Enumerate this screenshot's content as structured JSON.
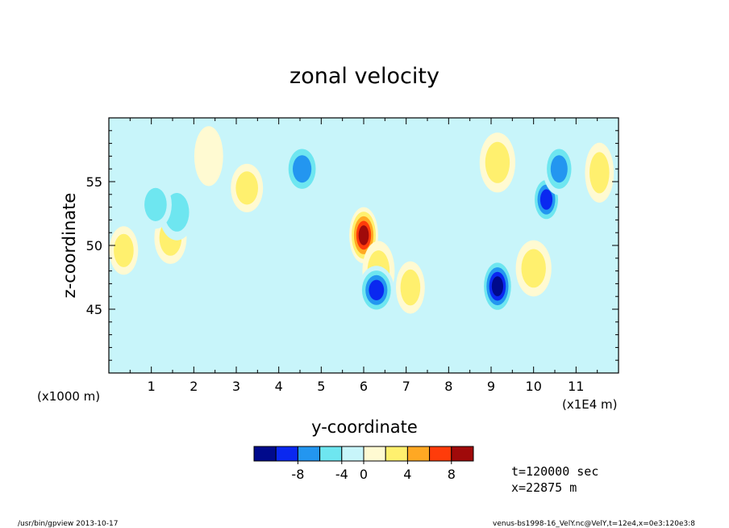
{
  "chart_data": {
    "type": "heatmap",
    "title": "zonal velocity",
    "xlabel": "y-coordinate",
    "ylabel": "z-coordinate",
    "x_unit_label": "(x1000 m)",
    "x_unit_label_right": "(x1E4 m)",
    "xlim": [
      0,
      12
    ],
    "ylim": [
      40,
      60
    ],
    "x_ticks": [
      "1",
      "2",
      "3",
      "4",
      "5",
      "6",
      "7",
      "8",
      "9",
      "10",
      "11"
    ],
    "y_ticks": [
      "45",
      "50",
      "55"
    ],
    "colorbar": {
      "levels": [
        "-8",
        "-4",
        "0",
        "4",
        "8"
      ],
      "colors": [
        "#000a8c",
        "#0a28f0",
        "#2396f0",
        "#6ee6f0",
        "#c8f5fa",
        "#fffad2",
        "#fff06e",
        "#ffa823",
        "#ff3c0a",
        "#a00a0a"
      ]
    },
    "features": [
      {
        "x": 0.35,
        "z": 49.6,
        "value": 4
      },
      {
        "x": 1.45,
        "z": 50.6,
        "value": 4
      },
      {
        "x": 1.6,
        "z": 52.6,
        "value": -4
      },
      {
        "x": 2.35,
        "z": 57,
        "value": 2
      },
      {
        "x": 3.25,
        "z": 54.5,
        "value": 4
      },
      {
        "x": 4.55,
        "z": 56,
        "value": -6
      },
      {
        "x": 6.0,
        "z": 50.8,
        "value": 9
      },
      {
        "x": 6.35,
        "z": 48.0,
        "value": 4
      },
      {
        "x": 6.3,
        "z": 46.5,
        "value": -7
      },
      {
        "x": 7.1,
        "z": 46.7,
        "value": 4
      },
      {
        "x": 9.15,
        "z": 46.8,
        "value": -9
      },
      {
        "x": 9.15,
        "z": 56.5,
        "value": 4
      },
      {
        "x": 10.3,
        "z": 53.6,
        "value": -7
      },
      {
        "x": 10.6,
        "z": 56.0,
        "value": -5
      },
      {
        "x": 10.0,
        "z": 48.2,
        "value": 4
      },
      {
        "x": 11.55,
        "z": 55.7,
        "value": 4
      },
      {
        "x": 1.1,
        "z": 53.2,
        "value": -3
      }
    ]
  },
  "annotations": {
    "time": "t=120000 sec",
    "position": "x=22875 m"
  },
  "footer": {
    "left": "/usr/bin/gpview  2013-10-17",
    "right": "venus-bs1998-16_VelY.nc@VelY,t=12e4,x=0e3:120e3:8"
  }
}
